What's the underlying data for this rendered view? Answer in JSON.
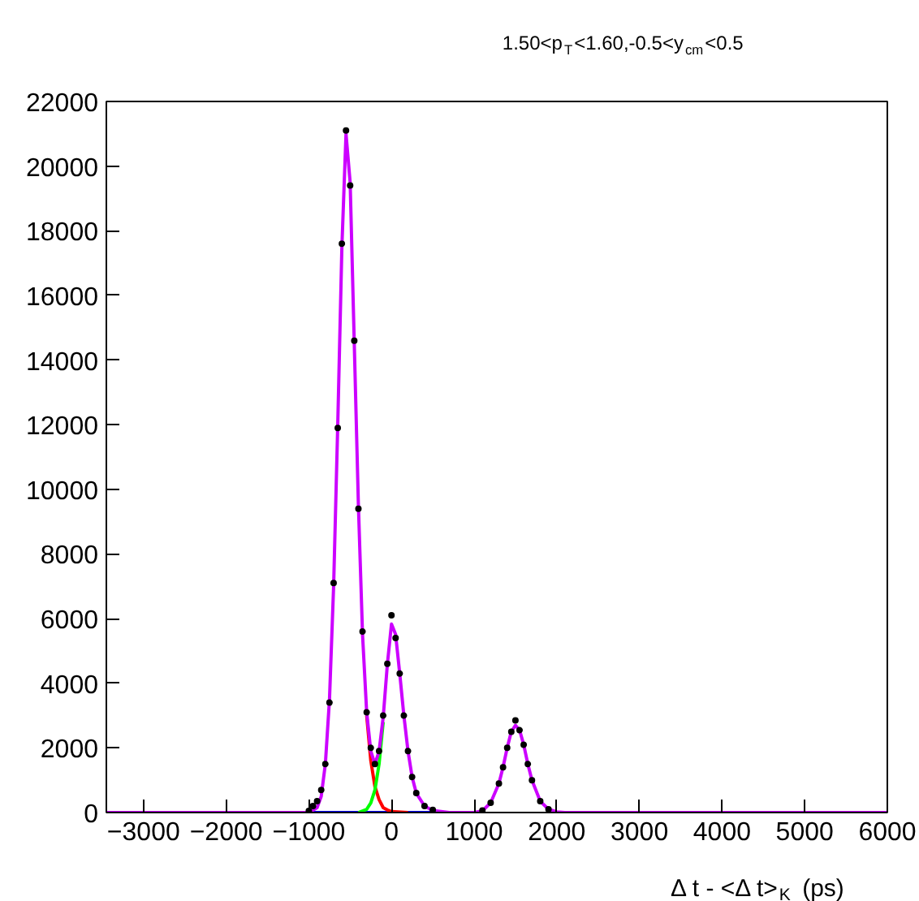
{
  "chart_data": {
    "type": "line",
    "title": "1.50<p$_{T}$<1.60,-0.5<y$_{cm}$<0.5",
    "xlabel": "Δ t - <Δ t>$_{K}$ (ps)",
    "xlim": [
      -3450,
      6000
    ],
    "ylim": [
      0,
      22000
    ],
    "xticks": [
      -3000,
      -2000,
      -1000,
      0,
      1000,
      2000,
      3000,
      4000,
      5000,
      6000
    ],
    "yticks": [
      0,
      2000,
      4000,
      6000,
      8000,
      10000,
      12000,
      14000,
      16000,
      18000,
      20000,
      22000
    ],
    "grid": false,
    "line_style": "solid",
    "series": [
      {
        "color": "#0000ff",
        "x": [
          -1000,
          500
        ],
        "values": [
          0,
          0
        ]
      },
      {
        "color": "#ff0000",
        "x": [
          -300,
          -250,
          -200,
          -150,
          -100,
          -50,
          0,
          200
        ],
        "values": [
          3000,
          1600,
          800,
          400,
          150,
          80,
          30,
          0
        ]
      },
      {
        "color": "#00ff00",
        "x": [
          -400,
          -300,
          -250,
          -200,
          -150,
          -100
        ],
        "values": [
          0,
          100,
          300,
          700,
          1500,
          2800
        ]
      },
      {
        "type": "scatter",
        "marker": "circle",
        "color": "#000000",
        "x": [
          -1000,
          -950,
          -900,
          -850,
          -800,
          -750,
          -700,
          -650,
          -600,
          -550,
          -500,
          -450,
          -400,
          -350,
          -300,
          -250,
          -200,
          -150,
          -100,
          -50,
          0,
          50,
          100,
          150,
          200,
          250,
          300,
          400,
          500,
          1100,
          1200,
          1300,
          1350,
          1400,
          1450,
          1500,
          1550,
          1600,
          1650,
          1700,
          1800,
          1900
        ],
        "values": [
          50,
          200,
          350,
          700,
          1500,
          3400,
          7100,
          11900,
          17600,
          21100,
          19400,
          14600,
          9400,
          5600,
          3100,
          2000,
          1500,
          1900,
          3000,
          4600,
          6100,
          5400,
          4300,
          3000,
          1900,
          1100,
          600,
          200,
          80,
          60,
          300,
          900,
          1400,
          2000,
          2500,
          2850,
          2550,
          2100,
          1500,
          1000,
          350,
          100
        ]
      },
      {
        "color": "#cc00ff",
        "x": [
          -3450,
          -1000,
          -900,
          -850,
          -800,
          -750,
          -700,
          -650,
          -600,
          -550,
          -500,
          -450,
          -400,
          -350,
          -300,
          -250,
          -200,
          -150,
          -100,
          -50,
          0,
          50,
          100,
          150,
          200,
          250,
          300,
          400,
          500,
          700,
          1000,
          1100,
          1200,
          1300,
          1350,
          1400,
          1450,
          1500,
          1550,
          1600,
          1650,
          1700,
          1800,
          1900,
          2000,
          2100,
          6000
        ],
        "values": [
          0,
          0,
          150,
          500,
          1500,
          3500,
          7000,
          12000,
          17500,
          21000,
          19500,
          14500,
          9500,
          5500,
          3100,
          1900,
          1500,
          1900,
          2950,
          4580,
          5830,
          5510,
          4300,
          3000,
          1900,
          1100,
          600,
          200,
          60,
          0,
          0,
          50,
          300,
          900,
          1400,
          2000,
          2500,
          2700,
          2550,
          2100,
          1500,
          1000,
          350,
          100,
          20,
          0,
          0
        ]
      }
    ]
  }
}
